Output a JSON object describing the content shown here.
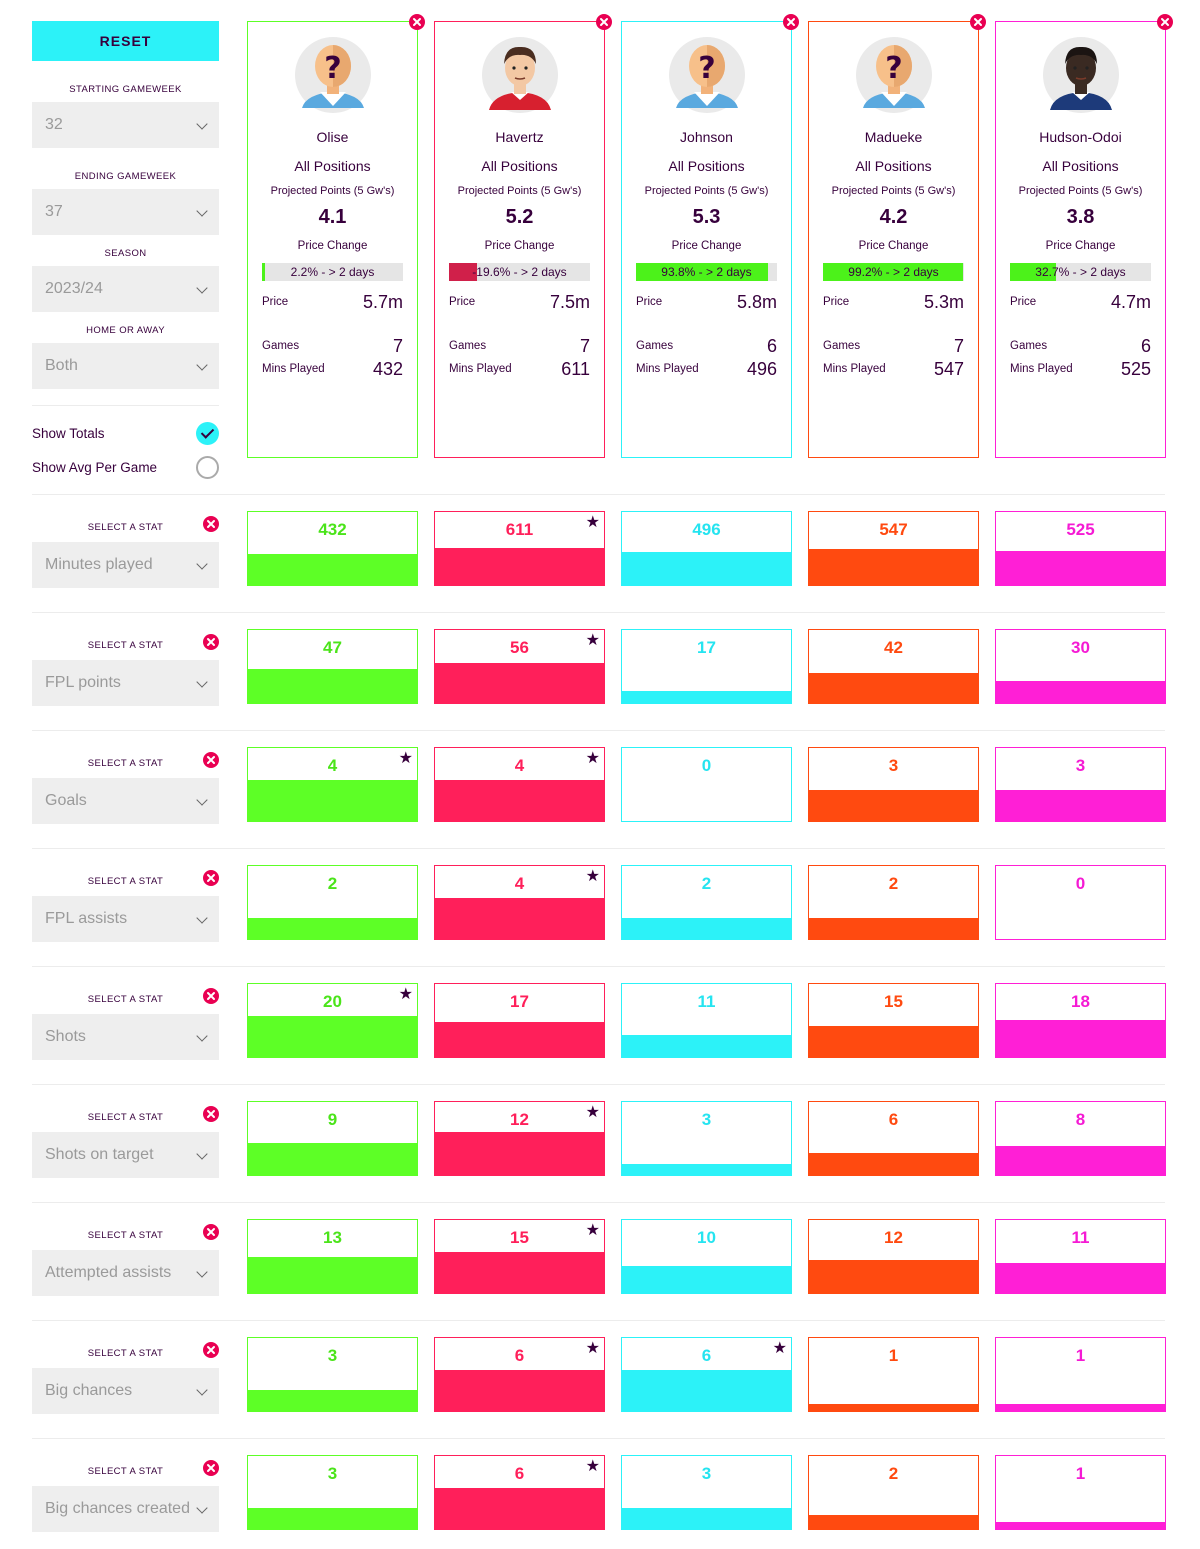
{
  "controls": {
    "reset_label": "RESET",
    "starting_gw_label": "STARTING GAMEWEEK",
    "starting_gw": "32",
    "ending_gw_label": "ENDING GAMEWEEK",
    "ending_gw": "37",
    "season_label": "SEASON",
    "season": "2023/24",
    "venue_label": "HOME OR AWAY",
    "venue": "Both",
    "show_totals_label": "Show Totals",
    "show_totals": true,
    "show_avg_label": "Show Avg Per Game",
    "show_avg": false
  },
  "card_labels": {
    "projected": "Projected Points (5 Gw's)",
    "price_change": "Price Change",
    "price": "Price",
    "games": "Games",
    "mins": "Mins Played"
  },
  "players": [
    {
      "name": "Olise",
      "position": "All Positions",
      "projected": "4.1",
      "price_change_text": "2.2% - > 2 days",
      "price_change_pct": 2.2,
      "price": "5.7m",
      "games": "7",
      "mins": "432",
      "color": "#5dff26",
      "text_color": "#4be41a",
      "avatar": "unknown-player-icon"
    },
    {
      "name": "Havertz",
      "position": "All Positions",
      "projected": "5.2",
      "price_change_text": "-19.6% - > 2 days",
      "price_change_pct": -19.6,
      "price": "7.5m",
      "games": "7",
      "mins": "611",
      "color": "#ff1f5a",
      "text_color": "#ff1f5a",
      "avatar": "player-photo-icon"
    },
    {
      "name": "Johnson",
      "position": "All Positions",
      "projected": "5.3",
      "price_change_text": "93.8% - > 2 days",
      "price_change_pct": 93.8,
      "price": "5.8m",
      "games": "6",
      "mins": "496",
      "color": "#2cf2f8",
      "text_color": "#25e4f0",
      "avatar": "unknown-player-icon"
    },
    {
      "name": "Madueke",
      "position": "All Positions",
      "projected": "4.2",
      "price_change_text": "99.2% - > 2 days",
      "price_change_pct": 99.2,
      "price": "5.3m",
      "games": "7",
      "mins": "547",
      "color": "#ff4a10",
      "text_color": "#ff4a10",
      "avatar": "unknown-player-icon"
    },
    {
      "name": "Hudson-Odoi",
      "position": "All Positions",
      "projected": "3.8",
      "price_change_text": "32.7% - > 2 days",
      "price_change_pct": 32.7,
      "price": "4.7m",
      "games": "6",
      "mins": "525",
      "color": "#ff1fd6",
      "text_color": "#f51ad4",
      "avatar": "player-photo-icon"
    }
  ],
  "stat_select_label": "SELECT A STAT",
  "stats": [
    {
      "name": "Minutes played",
      "values": [
        "432",
        "611",
        "496",
        "547",
        "525"
      ],
      "fill": [
        0.43,
        0.52,
        0.46,
        0.5,
        0.47
      ],
      "stars": [
        false,
        true,
        false,
        false,
        false
      ]
    },
    {
      "name": "FPL points",
      "values": [
        "47",
        "56",
        "17",
        "42",
        "30"
      ],
      "fill": [
        0.47,
        0.56,
        0.17,
        0.42,
        0.3
      ],
      "stars": [
        false,
        true,
        false,
        false,
        false
      ]
    },
    {
      "name": "Goals",
      "values": [
        "4",
        "4",
        "0",
        "3",
        "3"
      ],
      "fill": [
        0.57,
        0.57,
        0.0,
        0.43,
        0.43
      ],
      "stars": [
        true,
        true,
        false,
        false,
        false
      ]
    },
    {
      "name": "FPL assists",
      "values": [
        "2",
        "4",
        "2",
        "2",
        "0"
      ],
      "fill": [
        0.29,
        0.57,
        0.29,
        0.29,
        0.0
      ],
      "stars": [
        false,
        true,
        false,
        false,
        false
      ]
    },
    {
      "name": "Shots",
      "values": [
        "20",
        "17",
        "11",
        "15",
        "18"
      ],
      "fill": [
        0.57,
        0.49,
        0.31,
        0.43,
        0.51
      ],
      "stars": [
        true,
        false,
        false,
        false,
        false
      ]
    },
    {
      "name": "Shots on target",
      "values": [
        "9",
        "12",
        "3",
        "6",
        "8"
      ],
      "fill": [
        0.45,
        0.6,
        0.15,
        0.3,
        0.4
      ],
      "stars": [
        false,
        true,
        false,
        false,
        false
      ]
    },
    {
      "name": "Attempted assists",
      "values": [
        "13",
        "15",
        "10",
        "12",
        "11"
      ],
      "fill": [
        0.5,
        0.57,
        0.38,
        0.46,
        0.42
      ],
      "stars": [
        false,
        true,
        false,
        false,
        false
      ]
    },
    {
      "name": "Big chances",
      "values": [
        "3",
        "6",
        "6",
        "1",
        "1"
      ],
      "fill": [
        0.29,
        0.57,
        0.57,
        0.1,
        0.1
      ],
      "stars": [
        false,
        true,
        true,
        false,
        false
      ]
    },
    {
      "name": "Big chances created",
      "values": [
        "3",
        "6",
        "3",
        "2",
        "1"
      ],
      "fill": [
        0.29,
        0.57,
        0.29,
        0.19,
        0.1
      ],
      "stars": [
        false,
        true,
        false,
        false,
        false
      ]
    }
  ]
}
